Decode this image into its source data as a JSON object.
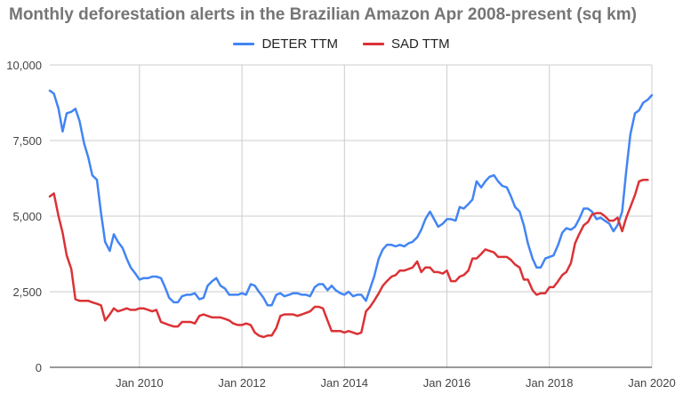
{
  "chart_data": {
    "type": "line",
    "title": "Monthly deforestation alerts in the Brazilian Amazon Apr 2008-present (sq km)",
    "xlabel": "",
    "ylabel": "",
    "ylim": [
      0,
      10000
    ],
    "yticks": [
      "0",
      "2,500",
      "5,000",
      "7,500",
      "10,000"
    ],
    "ytick_values": [
      0,
      2500,
      5000,
      7500,
      10000
    ],
    "xtick_labels": [
      "Jan 2010",
      "Jan 2012",
      "Jan 2014",
      "Jan 2016",
      "Jan 2018",
      "Jan 2020"
    ],
    "xtick_values": [
      2010,
      2012,
      2014,
      2016,
      2018,
      2020
    ],
    "xlim": [
      2008.25,
      2020.0
    ],
    "grid": true,
    "legend_position": "top-center",
    "series": [
      {
        "name": "DETER TTM",
        "color": "#4285f4",
        "points": [
          [
            2008.25,
            9150
          ],
          [
            2008.33,
            9050
          ],
          [
            2008.42,
            8550
          ],
          [
            2008.5,
            7800
          ],
          [
            2008.58,
            8400
          ],
          [
            2008.67,
            8450
          ],
          [
            2008.75,
            8550
          ],
          [
            2008.83,
            8150
          ],
          [
            2008.92,
            7400
          ],
          [
            2009.0,
            6950
          ],
          [
            2009.08,
            6350
          ],
          [
            2009.17,
            6200
          ],
          [
            2009.25,
            5100
          ],
          [
            2009.33,
            4150
          ],
          [
            2009.42,
            3850
          ],
          [
            2009.5,
            4400
          ],
          [
            2009.58,
            4150
          ],
          [
            2009.67,
            3950
          ],
          [
            2009.75,
            3600
          ],
          [
            2009.83,
            3300
          ],
          [
            2009.92,
            3100
          ],
          [
            2010.0,
            2900
          ],
          [
            2010.08,
            2950
          ],
          [
            2010.17,
            2950
          ],
          [
            2010.25,
            3000
          ],
          [
            2010.33,
            3000
          ],
          [
            2010.42,
            2950
          ],
          [
            2010.5,
            2650
          ],
          [
            2010.58,
            2300
          ],
          [
            2010.67,
            2150
          ],
          [
            2010.75,
            2150
          ],
          [
            2010.83,
            2350
          ],
          [
            2010.92,
            2400
          ],
          [
            2011.0,
            2400
          ],
          [
            2011.08,
            2450
          ],
          [
            2011.17,
            2250
          ],
          [
            2011.25,
            2300
          ],
          [
            2011.33,
            2700
          ],
          [
            2011.42,
            2850
          ],
          [
            2011.5,
            2950
          ],
          [
            2011.58,
            2700
          ],
          [
            2011.67,
            2600
          ],
          [
            2011.75,
            2400
          ],
          [
            2011.83,
            2400
          ],
          [
            2011.92,
            2400
          ],
          [
            2012.0,
            2450
          ],
          [
            2012.08,
            2400
          ],
          [
            2012.17,
            2750
          ],
          [
            2012.25,
            2700
          ],
          [
            2012.33,
            2500
          ],
          [
            2012.42,
            2300
          ],
          [
            2012.5,
            2050
          ],
          [
            2012.58,
            2050
          ],
          [
            2012.67,
            2400
          ],
          [
            2012.75,
            2450
          ],
          [
            2012.83,
            2350
          ],
          [
            2012.92,
            2400
          ],
          [
            2013.0,
            2450
          ],
          [
            2013.08,
            2450
          ],
          [
            2013.17,
            2400
          ],
          [
            2013.25,
            2400
          ],
          [
            2013.33,
            2350
          ],
          [
            2013.42,
            2650
          ],
          [
            2013.5,
            2750
          ],
          [
            2013.58,
            2750
          ],
          [
            2013.67,
            2550
          ],
          [
            2013.75,
            2700
          ],
          [
            2013.83,
            2550
          ],
          [
            2013.92,
            2450
          ],
          [
            2014.0,
            2400
          ],
          [
            2014.08,
            2500
          ],
          [
            2014.17,
            2350
          ],
          [
            2014.25,
            2400
          ],
          [
            2014.33,
            2400
          ],
          [
            2014.42,
            2200
          ],
          [
            2014.5,
            2600
          ],
          [
            2014.58,
            3000
          ],
          [
            2014.67,
            3600
          ],
          [
            2014.75,
            3900
          ],
          [
            2014.83,
            4050
          ],
          [
            2014.92,
            4050
          ],
          [
            2015.0,
            4000
          ],
          [
            2015.08,
            4050
          ],
          [
            2015.17,
            4000
          ],
          [
            2015.25,
            4100
          ],
          [
            2015.33,
            4150
          ],
          [
            2015.42,
            4300
          ],
          [
            2015.5,
            4550
          ],
          [
            2015.58,
            4900
          ],
          [
            2015.67,
            5150
          ],
          [
            2015.75,
            4900
          ],
          [
            2015.83,
            4650
          ],
          [
            2015.92,
            4750
          ],
          [
            2016.0,
            4900
          ],
          [
            2016.08,
            4900
          ],
          [
            2016.17,
            4850
          ],
          [
            2016.25,
            5300
          ],
          [
            2016.33,
            5250
          ],
          [
            2016.42,
            5400
          ],
          [
            2016.5,
            5550
          ],
          [
            2016.58,
            6150
          ],
          [
            2016.67,
            5950
          ],
          [
            2016.75,
            6150
          ],
          [
            2016.83,
            6300
          ],
          [
            2016.92,
            6350
          ],
          [
            2017.0,
            6150
          ],
          [
            2017.08,
            6000
          ],
          [
            2017.17,
            5950
          ],
          [
            2017.25,
            5650
          ],
          [
            2017.33,
            5300
          ],
          [
            2017.42,
            5150
          ],
          [
            2017.5,
            4700
          ],
          [
            2017.58,
            4100
          ],
          [
            2017.67,
            3600
          ],
          [
            2017.75,
            3300
          ],
          [
            2017.83,
            3300
          ],
          [
            2017.92,
            3600
          ],
          [
            2018.0,
            3650
          ],
          [
            2018.08,
            3700
          ],
          [
            2018.17,
            4050
          ],
          [
            2018.25,
            4450
          ],
          [
            2018.33,
            4600
          ],
          [
            2018.42,
            4550
          ],
          [
            2018.5,
            4650
          ],
          [
            2018.58,
            4900
          ],
          [
            2018.67,
            5250
          ],
          [
            2018.75,
            5250
          ],
          [
            2018.83,
            5150
          ],
          [
            2018.92,
            4900
          ],
          [
            2019.0,
            4950
          ],
          [
            2019.08,
            4850
          ],
          [
            2019.17,
            4750
          ],
          [
            2019.25,
            4500
          ],
          [
            2019.33,
            4700
          ],
          [
            2019.42,
            5150
          ],
          [
            2019.5,
            6500
          ],
          [
            2019.58,
            7700
          ],
          [
            2019.67,
            8400
          ],
          [
            2019.75,
            8500
          ],
          [
            2019.83,
            8750
          ],
          [
            2019.92,
            8850
          ],
          [
            2020.0,
            9000
          ]
        ]
      },
      {
        "name": "SAD TTM",
        "color": "#db3236",
        "points": [
          [
            2008.25,
            5650
          ],
          [
            2008.33,
            5750
          ],
          [
            2008.42,
            5000
          ],
          [
            2008.5,
            4450
          ],
          [
            2008.58,
            3700
          ],
          [
            2008.67,
            3250
          ],
          [
            2008.75,
            2250
          ],
          [
            2008.83,
            2200
          ],
          [
            2008.92,
            2200
          ],
          [
            2009.0,
            2200
          ],
          [
            2009.08,
            2150
          ],
          [
            2009.17,
            2100
          ],
          [
            2009.25,
            2050
          ],
          [
            2009.33,
            1550
          ],
          [
            2009.42,
            1750
          ],
          [
            2009.5,
            1950
          ],
          [
            2009.58,
            1850
          ],
          [
            2009.67,
            1900
          ],
          [
            2009.75,
            1950
          ],
          [
            2009.83,
            1900
          ],
          [
            2009.92,
            1900
          ],
          [
            2010.0,
            1950
          ],
          [
            2010.08,
            1950
          ],
          [
            2010.17,
            1900
          ],
          [
            2010.25,
            1850
          ],
          [
            2010.33,
            1900
          ],
          [
            2010.42,
            1500
          ],
          [
            2010.5,
            1450
          ],
          [
            2010.58,
            1400
          ],
          [
            2010.67,
            1350
          ],
          [
            2010.75,
            1350
          ],
          [
            2010.83,
            1500
          ],
          [
            2010.92,
            1500
          ],
          [
            2011.0,
            1500
          ],
          [
            2011.08,
            1450
          ],
          [
            2011.17,
            1700
          ],
          [
            2011.25,
            1750
          ],
          [
            2011.33,
            1700
          ],
          [
            2011.42,
            1650
          ],
          [
            2011.5,
            1650
          ],
          [
            2011.58,
            1650
          ],
          [
            2011.67,
            1600
          ],
          [
            2011.75,
            1550
          ],
          [
            2011.83,
            1450
          ],
          [
            2011.92,
            1400
          ],
          [
            2012.0,
            1400
          ],
          [
            2012.08,
            1450
          ],
          [
            2012.17,
            1400
          ],
          [
            2012.25,
            1150
          ],
          [
            2012.33,
            1050
          ],
          [
            2012.42,
            1000
          ],
          [
            2012.5,
            1050
          ],
          [
            2012.58,
            1050
          ],
          [
            2012.67,
            1300
          ],
          [
            2012.75,
            1700
          ],
          [
            2012.83,
            1750
          ],
          [
            2012.92,
            1750
          ],
          [
            2013.0,
            1750
          ],
          [
            2013.08,
            1700
          ],
          [
            2013.17,
            1750
          ],
          [
            2013.25,
            1800
          ],
          [
            2013.33,
            1850
          ],
          [
            2013.42,
            2000
          ],
          [
            2013.5,
            2000
          ],
          [
            2013.58,
            1950
          ],
          [
            2013.67,
            1550
          ],
          [
            2013.75,
            1200
          ],
          [
            2013.83,
            1200
          ],
          [
            2013.92,
            1200
          ],
          [
            2014.0,
            1150
          ],
          [
            2014.08,
            1200
          ],
          [
            2014.17,
            1150
          ],
          [
            2014.25,
            1100
          ],
          [
            2014.33,
            1150
          ],
          [
            2014.42,
            1850
          ],
          [
            2014.5,
            2000
          ],
          [
            2014.58,
            2200
          ],
          [
            2014.67,
            2450
          ],
          [
            2014.75,
            2700
          ],
          [
            2014.83,
            2850
          ],
          [
            2014.92,
            3000
          ],
          [
            2015.0,
            3050
          ],
          [
            2015.08,
            3200
          ],
          [
            2015.17,
            3200
          ],
          [
            2015.25,
            3250
          ],
          [
            2015.33,
            3300
          ],
          [
            2015.42,
            3500
          ],
          [
            2015.5,
            3150
          ],
          [
            2015.58,
            3300
          ],
          [
            2015.67,
            3300
          ],
          [
            2015.75,
            3150
          ],
          [
            2015.83,
            3150
          ],
          [
            2015.92,
            3100
          ],
          [
            2016.0,
            3200
          ],
          [
            2016.08,
            2850
          ],
          [
            2016.17,
            2850
          ],
          [
            2016.25,
            3000
          ],
          [
            2016.33,
            3050
          ],
          [
            2016.42,
            3200
          ],
          [
            2016.5,
            3600
          ],
          [
            2016.58,
            3600
          ],
          [
            2016.67,
            3750
          ],
          [
            2016.75,
            3900
          ],
          [
            2016.83,
            3850
          ],
          [
            2016.92,
            3800
          ],
          [
            2017.0,
            3650
          ],
          [
            2017.08,
            3650
          ],
          [
            2017.17,
            3650
          ],
          [
            2017.25,
            3550
          ],
          [
            2017.33,
            3400
          ],
          [
            2017.42,
            3300
          ],
          [
            2017.5,
            2900
          ],
          [
            2017.58,
            2900
          ],
          [
            2017.67,
            2550
          ],
          [
            2017.75,
            2400
          ],
          [
            2017.83,
            2450
          ],
          [
            2017.92,
            2450
          ],
          [
            2018.0,
            2650
          ],
          [
            2018.08,
            2650
          ],
          [
            2018.17,
            2850
          ],
          [
            2018.25,
            3050
          ],
          [
            2018.33,
            3150
          ],
          [
            2018.42,
            3450
          ],
          [
            2018.5,
            4100
          ],
          [
            2018.58,
            4400
          ],
          [
            2018.67,
            4700
          ],
          [
            2018.75,
            4800
          ],
          [
            2018.83,
            5050
          ],
          [
            2018.92,
            5100
          ],
          [
            2019.0,
            5100
          ],
          [
            2019.08,
            5000
          ],
          [
            2019.17,
            4850
          ],
          [
            2019.25,
            4850
          ],
          [
            2019.33,
            4950
          ],
          [
            2019.42,
            4500
          ],
          [
            2019.5,
            4950
          ],
          [
            2019.58,
            5300
          ],
          [
            2019.67,
            5700
          ],
          [
            2019.75,
            6150
          ],
          [
            2019.83,
            6200
          ],
          [
            2019.92,
            6200
          ]
        ]
      }
    ]
  }
}
